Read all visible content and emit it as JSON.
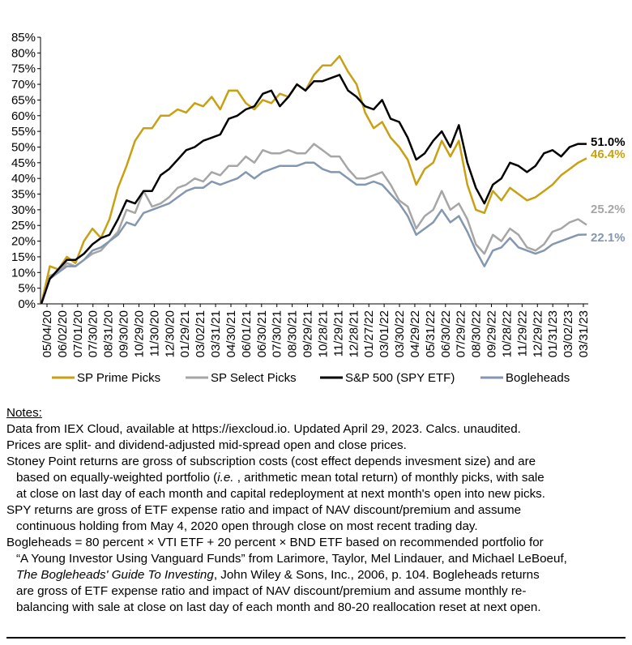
{
  "chart_data": {
    "type": "line",
    "ylim": [
      0,
      85
    ],
    "y_ticks": [
      "0%",
      "5%",
      "10%",
      "15%",
      "20%",
      "25%",
      "30%",
      "35%",
      "40%",
      "45%",
      "50%",
      "55%",
      "60%",
      "65%",
      "70%",
      "75%",
      "80%",
      "85%"
    ],
    "x_ticks": [
      "05/04/20",
      "06/02/20",
      "07/01/20",
      "07/30/20",
      "08/31/20",
      "09/30/20",
      "10/29/20",
      "11/30/20",
      "12/30/20",
      "01/29/21",
      "03/02/21",
      "03/31/21",
      "04/30/21",
      "06/01/21",
      "06/30/21",
      "07/30/21",
      "08/30/21",
      "09/29/21",
      "10/28/21",
      "11/29/21",
      "12/28/21",
      "01/27/22",
      "03/01/22",
      "03/30/22",
      "04/29/22",
      "05/31/22",
      "06/30/22",
      "07/29/22",
      "08/30/22",
      "09/29/22",
      "10/28/22",
      "11/29/22",
      "12/29/22",
      "01/31/23",
      "03/02/23",
      "03/31/23"
    ],
    "grid": false,
    "legend_position": "bottom",
    "series": [
      {
        "name": "SP Prime Picks",
        "color": "#C9A012",
        "end_label": "46.4%",
        "values": [
          0,
          12,
          11,
          15,
          13,
          20,
          24,
          21,
          27,
          37,
          44,
          52,
          56,
          56,
          60,
          60,
          62,
          61,
          64,
          63,
          66,
          62,
          68,
          68,
          64,
          62,
          65,
          64,
          67,
          66,
          70,
          68,
          73,
          76,
          76,
          79,
          74,
          70,
          61,
          56,
          58,
          53,
          50,
          46,
          38,
          43,
          45,
          52,
          47,
          52,
          38,
          30,
          29,
          36,
          33,
          37,
          35,
          33,
          34,
          36,
          38,
          41,
          43,
          45,
          46.4
        ]
      },
      {
        "name": "SP Select Picks",
        "color": "#A6A6A6",
        "end_label": "25.2%",
        "values": [
          0,
          9,
          10,
          13,
          12,
          14,
          16,
          17,
          20,
          23,
          30,
          29,
          36,
          31,
          32,
          34,
          37,
          38,
          40,
          39,
          42,
          41,
          44,
          44,
          47,
          45,
          49,
          48,
          48,
          49,
          48,
          48,
          51,
          49,
          47,
          47,
          43,
          40,
          40,
          41,
          42,
          38,
          33,
          31,
          24,
          28,
          30,
          36,
          30,
          32,
          27,
          19,
          16,
          22,
          20,
          24,
          22,
          18,
          17,
          19,
          23,
          24,
          26,
          27,
          25.2
        ]
      },
      {
        "name": "S&P 500 (SPY ETF)",
        "color": "#000000",
        "end_label": "51.0%",
        "values": [
          0,
          8,
          11,
          14,
          14,
          16,
          19,
          21,
          22,
          27,
          33,
          32,
          36,
          36,
          41,
          43,
          46,
          49,
          50,
          52,
          53,
          54,
          59,
          60,
          62,
          63,
          67,
          68,
          63,
          66,
          70,
          68,
          71,
          71,
          72,
          73,
          68,
          66,
          63,
          62,
          65,
          59,
          58,
          53,
          46,
          48,
          52,
          55,
          50,
          57,
          45,
          37,
          32,
          38,
          40,
          45,
          44,
          42,
          44,
          48,
          49,
          47,
          50,
          51,
          51.0
        ]
      },
      {
        "name": "Bogleheads",
        "color": "#8497B0",
        "end_label": "22.1%",
        "values": [
          0,
          8,
          10,
          12,
          12,
          14,
          17,
          18,
          20,
          22,
          26,
          25,
          29,
          30,
          31,
          32,
          34,
          36,
          37,
          37,
          39,
          38,
          39,
          40,
          42,
          40,
          42,
          43,
          44,
          44,
          44,
          45,
          45,
          43,
          42,
          42,
          40,
          38,
          38,
          39,
          38,
          35,
          32,
          28,
          22,
          24,
          26,
          30,
          26,
          28,
          23,
          17,
          12,
          17,
          18,
          21,
          18,
          17,
          16,
          17,
          19,
          20,
          21,
          22,
          22.1
        ]
      }
    ]
  },
  "notes": {
    "title": "Notes:",
    "lines": [
      "Data from IEX Cloud, available at https://iexcloud.io. Updated April 29, 2023. Calcs. unaudited.",
      "Prices are split- and dividend-adjusted mid-spread open and close prices.",
      "Stoney Point returns are gross of subscription costs (cost effect depends invesment size) and are",
      "based on equally-weighted portfolio of monthly picks, with sale",
      "at close on last day of each month and capital redeployment at next month's open into new picks.",
      "SPY returns are gross of ETF expense ratio and impact of NAV discount/premium and assume",
      "continuous holding from May 4, 2020 open through close on most recent trading day.",
      "Bogleheads = 80 percent × VTI ETF + 20 percent × BND ETF based on recommended portfolio for",
      "“A Young Investor Using Vanguard Funds” from Larimore, Taylor, Mel Lindauer, and Michael LeBoeuf,",
      "The Bogleheads' Guide To Investing",
      ", John Wiley & Sons, Inc., 2006, p. 104. Bogleheads returns",
      "are gross of ETF expense ratio and impact of NAV discount/premium and assume monthly re-",
      "balancing with sale at close on last day of each month and 80-20 reallocation reset at next open."
    ],
    "l4_pre": "based on equally-weighted portfolio (",
    "l4_ie": "i.e.",
    "l4_post": " , arithmetic mean total return) of monthly picks, with sale"
  }
}
